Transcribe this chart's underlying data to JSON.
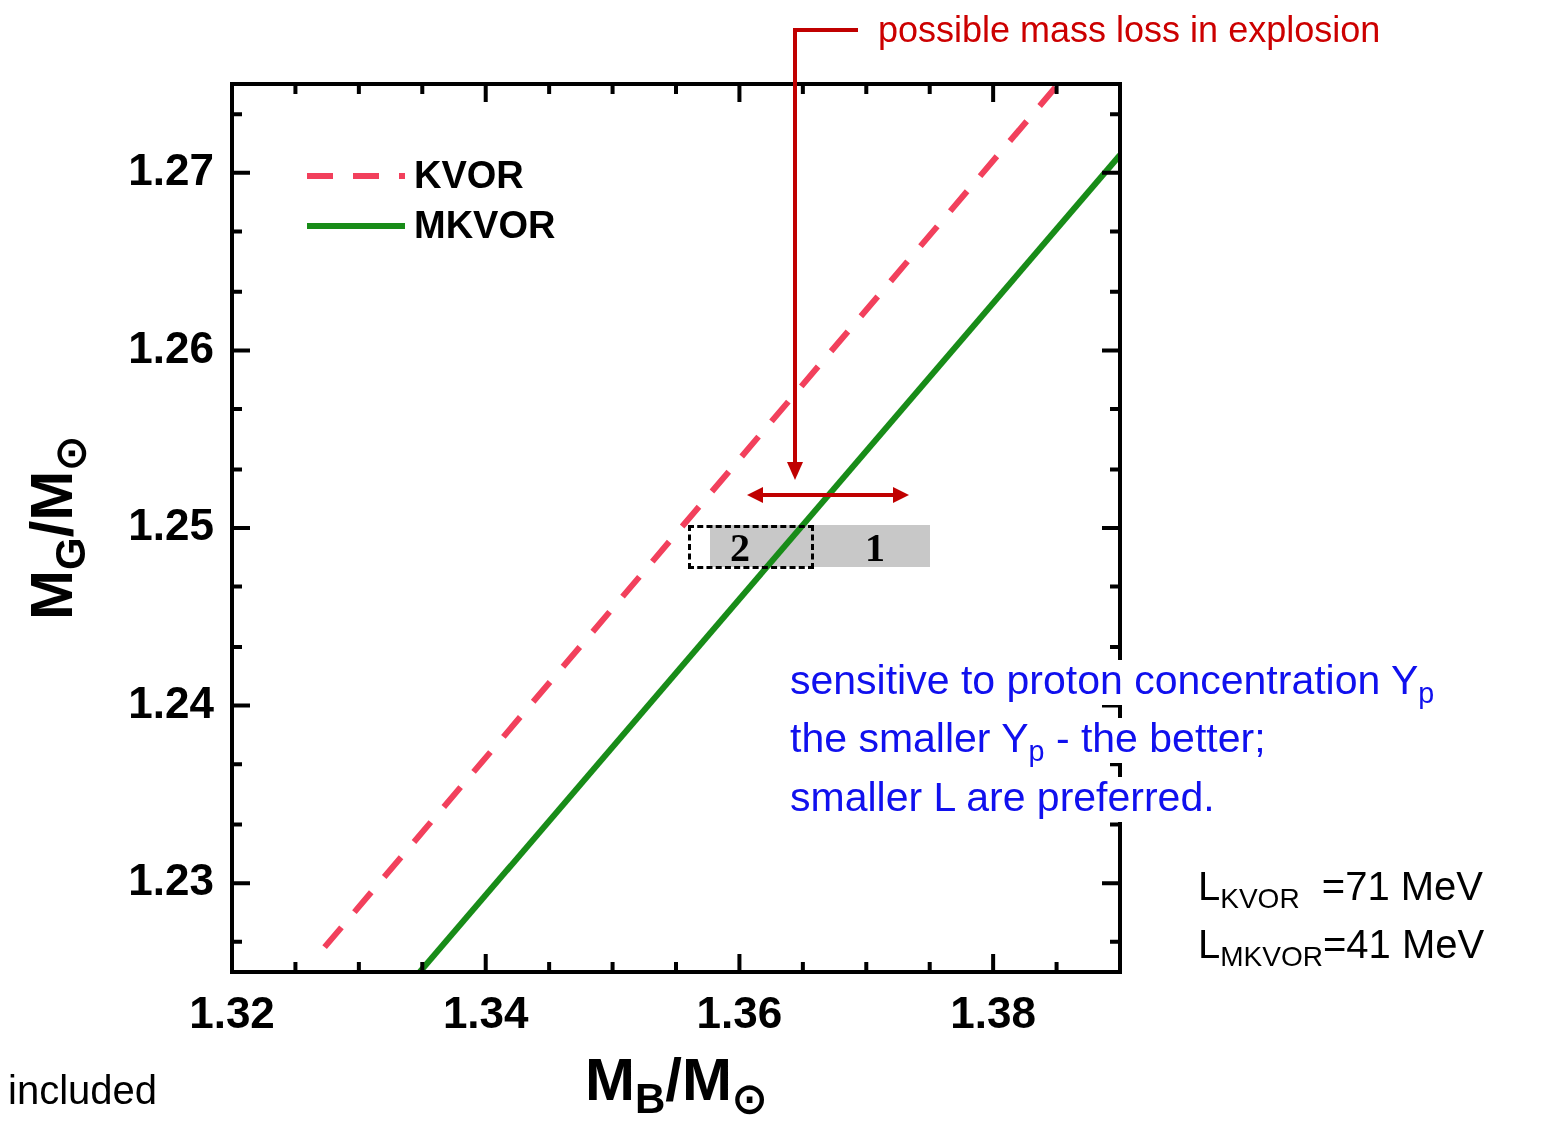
{
  "chart_data": {
    "type": "line",
    "xlabel": "M$_{B}$/M$_{⊙}$",
    "ylabel": "M$_{G}$/M$_{⊙}$",
    "series": [
      {
        "name": "KVOR",
        "color": "#f2405c",
        "line_style": "dashed",
        "x": [
          1.3273,
          1.3849
        ],
        "values": [
          1.2264,
          1.2748
        ]
      },
      {
        "name": "MKVOR",
        "color": "#188c18",
        "line_style": "solid",
        "x": [
          1.3348,
          1.39
        ],
        "values": [
          1.225,
          1.271
        ]
      }
    ],
    "xlim": [
      1.32,
      1.39
    ],
    "xticks": [
      1.32,
      {
        "value": 1.325,
        "label": null
      },
      {
        "value": 1.33,
        "label": null
      },
      {
        "value": 1.335,
        "label": null
      },
      1.34,
      {
        "value": 1.345,
        "label": null
      },
      {
        "value": 1.35,
        "label": null
      },
      {
        "value": 1.355,
        "label": null
      },
      1.36,
      {
        "value": 1.365,
        "label": null
      },
      {
        "value": 1.37,
        "label": null
      },
      {
        "value": 1.375,
        "label": null
      },
      1.38,
      {
        "value": 1.385,
        "label": null
      }
    ],
    "ylim": [
      1.225,
      1.275
    ],
    "yticks": [
      {
        "value": 1.2267,
        "label": null
      },
      1.23,
      {
        "value": 1.2333,
        "label": null
      },
      {
        "value": 1.2367,
        "label": null
      },
      1.24,
      {
        "value": 1.2433,
        "label": null
      },
      {
        "value": 1.2467,
        "label": null
      },
      1.25,
      {
        "value": 1.2533,
        "label": null
      },
      {
        "value": 1.2567,
        "label": null
      },
      1.26,
      {
        "value": 1.2633,
        "label": null
      },
      {
        "value": 1.2667,
        "label": null
      },
      1.27,
      {
        "value": 1.2733,
        "label": null
      }
    ],
    "grid": false,
    "legend": "top left",
    "marker": "none",
    "annotations": [
      "2",
      "1",
      "possible mass loss in explosion",
      "sensitive to proton concentration Y$_{p}$",
      "the smaller Y$_{p}$ - the better;",
      "smaller L are preferred.",
      "L$_{KVOR}$  =71 MeV",
      "L$_{MKVOR}$=41 MeV",
      "included"
    ]
  }
}
